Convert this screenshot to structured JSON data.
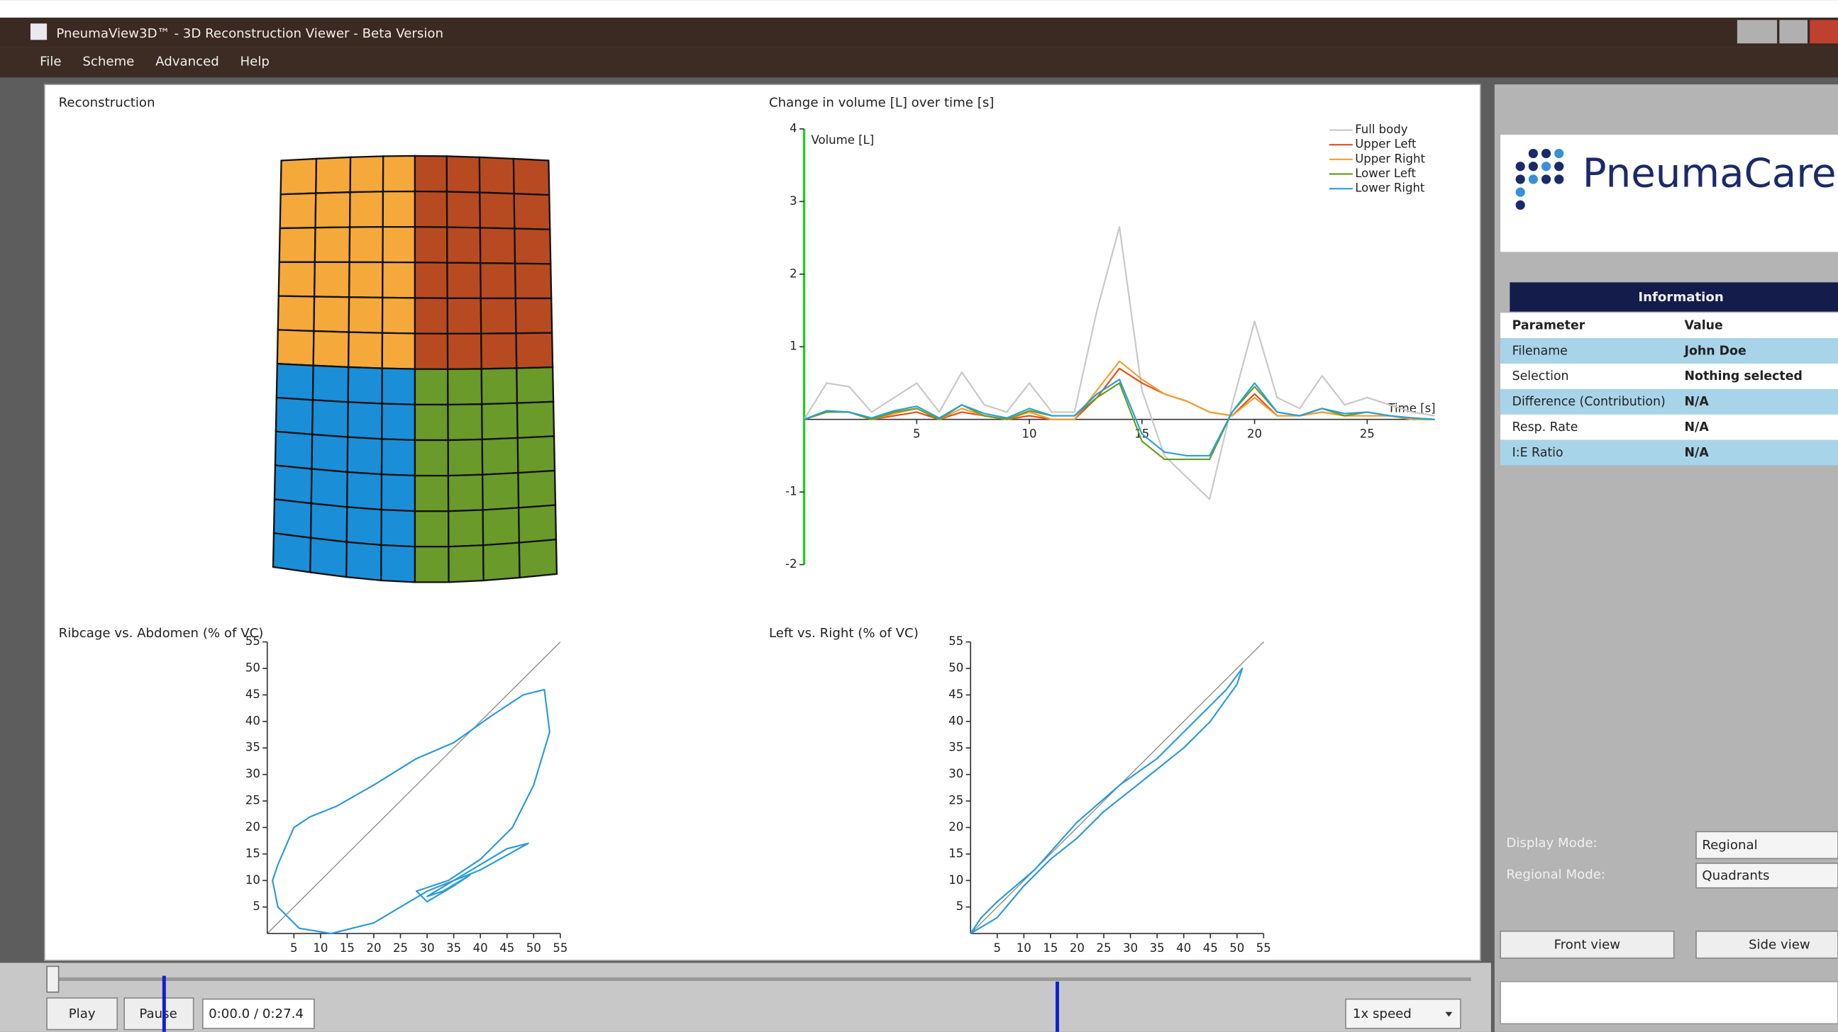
{
  "window": {
    "title": "PneumaView3D™ - 3D Reconstruction Viewer - Beta Version"
  },
  "menu": [
    "File",
    "Scheme",
    "Advanced",
    "Help"
  ],
  "reconstruction": {
    "title": "Reconstruction"
  },
  "volume_chart": {
    "type": "line",
    "title": "Change in volume [L] over time [s]",
    "y_label": "Volume [L]",
    "x_label": "Time [s]",
    "xlim": [
      0,
      28
    ],
    "ylim": [
      -2,
      4
    ],
    "xticks": [
      5,
      10,
      15,
      20,
      25
    ],
    "yticks": [
      -2,
      -1,
      1,
      2,
      3,
      4
    ],
    "x": [
      0,
      1,
      2,
      3,
      4,
      5,
      6,
      7,
      8,
      9,
      10,
      11,
      12,
      13,
      14,
      15,
      16,
      17,
      18,
      19,
      20,
      21,
      22,
      23,
      24,
      25,
      26,
      27,
      28
    ],
    "series": [
      {
        "name": "Full body",
        "color": "#c8c8c8",
        "values": [
          0,
          0.5,
          0.45,
          0.1,
          0.3,
          0.5,
          0.1,
          0.65,
          0.2,
          0.1,
          0.5,
          0.1,
          0.1,
          1.5,
          2.65,
          0.4,
          -0.5,
          -0.8,
          -1.1,
          0.2,
          1.35,
          0.3,
          0.15,
          0.6,
          0.2,
          0.3,
          0.2,
          0.1,
          0.05
        ]
      },
      {
        "name": "Upper Left",
        "color": "#e0501e",
        "values": [
          0,
          0.1,
          0.1,
          0,
          0.05,
          0.1,
          0,
          0.1,
          0.05,
          0,
          0.05,
          0,
          0,
          0.3,
          0.7,
          0.5,
          0.35,
          0.25,
          0.1,
          0.05,
          0.35,
          0.05,
          0.05,
          0.1,
          0.05,
          0.05,
          0.05,
          0,
          0
        ]
      },
      {
        "name": "Upper Right",
        "color": "#f0a030",
        "values": [
          0,
          0.12,
          0.1,
          0,
          0.08,
          0.15,
          0,
          0.15,
          0.05,
          0,
          0.1,
          0,
          0,
          0.4,
          0.8,
          0.55,
          0.35,
          0.25,
          0.1,
          0.05,
          0.3,
          0.05,
          0.05,
          0.1,
          0.05,
          0.05,
          0.05,
          0,
          0
        ]
      },
      {
        "name": "Lower Left",
        "color": "#6a9a20",
        "values": [
          0,
          0.1,
          0.1,
          0,
          0.1,
          0.15,
          0,
          0.2,
          0.05,
          0,
          0.12,
          0.05,
          0.05,
          0.3,
          0.5,
          -0.3,
          -0.55,
          -0.55,
          -0.55,
          0.1,
          0.45,
          0.1,
          0.05,
          0.15,
          0.05,
          0.1,
          0.05,
          0.02,
          0
        ]
      },
      {
        "name": "Lower Right",
        "color": "#2aa0d8",
        "values": [
          0,
          0.12,
          0.1,
          0.02,
          0.12,
          0.18,
          0.02,
          0.2,
          0.08,
          0.02,
          0.15,
          0.05,
          0.05,
          0.35,
          0.55,
          -0.2,
          -0.45,
          -0.5,
          -0.5,
          0.1,
          0.5,
          0.1,
          0.05,
          0.15,
          0.08,
          0.1,
          0.05,
          0.02,
          0
        ]
      }
    ]
  },
  "ribcage_chart": {
    "type": "line",
    "title": "Ribcage vs. Abdomen (% of VC)",
    "xlim": [
      0,
      55
    ],
    "ylim": [
      0,
      55
    ],
    "xticks": [
      5,
      10,
      15,
      20,
      25,
      30,
      35,
      40,
      45,
      50,
      55
    ],
    "yticks": [
      5,
      10,
      15,
      20,
      25,
      30,
      35,
      40,
      45,
      50,
      55
    ],
    "x": [
      2,
      5,
      8,
      13,
      20,
      28,
      35,
      42,
      48,
      52,
      53,
      50,
      46,
      40,
      34,
      28,
      30,
      35,
      38,
      33,
      30,
      35,
      45,
      49,
      40,
      30,
      20,
      12,
      6,
      2,
      1,
      2
    ],
    "color": "#2a9ad8",
    "values": [
      13,
      20,
      22,
      24,
      28,
      33,
      36,
      41,
      45,
      46,
      38,
      28,
      20,
      14,
      10,
      8,
      6,
      9,
      11,
      8,
      7,
      10,
      16,
      17,
      12,
      8,
      2,
      0,
      1,
      5,
      10,
      13
    ]
  },
  "leftright_chart": {
    "type": "line",
    "title": "Left vs. Right (% of VC)",
    "xlim": [
      0,
      55
    ],
    "ylim": [
      0,
      55
    ],
    "xticks": [
      5,
      10,
      15,
      20,
      25,
      30,
      35,
      40,
      45,
      50,
      55
    ],
    "yticks": [
      5,
      10,
      15,
      20,
      25,
      30,
      35,
      40,
      45,
      50,
      55
    ],
    "x": [
      0,
      5,
      10,
      15,
      20,
      25,
      30,
      35,
      40,
      45,
      50,
      51,
      48,
      42,
      35,
      28,
      20,
      12,
      5,
      2,
      0
    ],
    "color": "#2a9ad8",
    "values": [
      0,
      3,
      9,
      14,
      18,
      23,
      27,
      31,
      35,
      40,
      47,
      50,
      46,
      40,
      33,
      28,
      21,
      12,
      6,
      3,
      0
    ]
  },
  "logo": "PneumaCare",
  "information": {
    "title": "Information",
    "rows": [
      [
        "Parameter",
        "Value"
      ],
      [
        "Filename",
        "John Doe"
      ],
      [
        "Selection",
        "Nothing selected"
      ],
      [
        "Difference (Contribution)",
        "N/A"
      ],
      [
        "Resp. Rate",
        "N/A"
      ],
      [
        "I:E Ratio",
        "N/A"
      ]
    ]
  },
  "display_mode": {
    "label": "Display Mode:",
    "value": "Regional"
  },
  "regional_mode": {
    "label": "Regional Mode:",
    "value": "Quadrants"
  },
  "buttons": {
    "front": "Front view",
    "side": "Side view",
    "play": "Play",
    "pause": "Pause"
  },
  "time": "0:00.0 / 0:27.4",
  "speed": "1x speed"
}
